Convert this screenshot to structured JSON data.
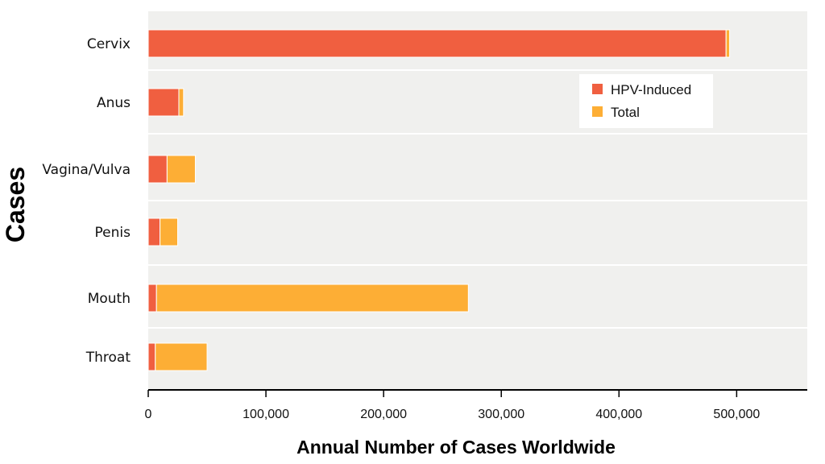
{
  "chart_data": {
    "type": "bar",
    "orientation": "horizontal",
    "stacked": true,
    "categories": [
      "Cervix",
      "Anus",
      "Vagina/Vulva",
      "Penis",
      "Mouth",
      "Throat"
    ],
    "series": [
      {
        "name": "HPV-Induced",
        "color": "#f05f40",
        "values": [
          491000,
          26000,
          16000,
          10000,
          7000,
          6000
        ]
      },
      {
        "name": "Total",
        "color": "#fdae35",
        "values": [
          3000,
          4000,
          24000,
          15000,
          265000,
          44000
        ]
      }
    ],
    "xlabel": "Annual Number of  Cases Worldwide",
    "ylabel": "Cases",
    "xlim": [
      0,
      560000
    ],
    "xticks": [
      0,
      100000,
      200000,
      300000,
      400000,
      500000
    ],
    "xtick_labels": [
      "0",
      "100,000",
      "200,000",
      "300,000",
      "400,000",
      "500,000"
    ],
    "grid": "horizontal bands",
    "legend_position": "top-right",
    "plot_background": "#f0f0ee"
  }
}
